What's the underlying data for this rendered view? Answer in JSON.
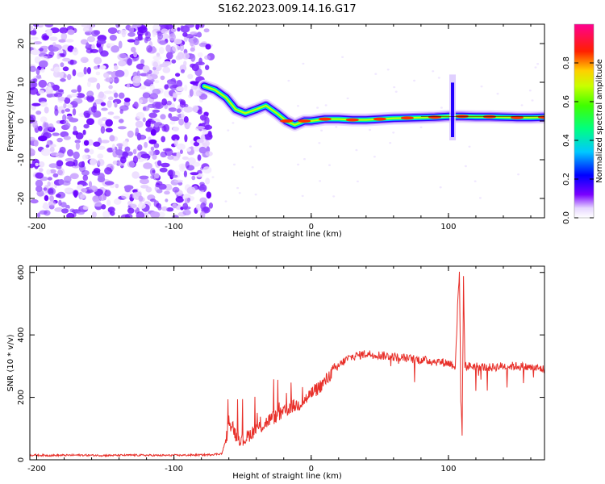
{
  "figure": {
    "title": "S162.2023.009.14.16.G17"
  },
  "chart_data": [
    {
      "type": "heatmap",
      "xlabel": "Height of straight line (km)",
      "ylabel": "Frequency (Hz)",
      "xlim": [
        -205,
        170
      ],
      "ylim": [
        -25,
        25
      ],
      "x_ticks": [
        -200,
        -100,
        0,
        100
      ],
      "x_tick_labels": [
        "-200",
        "-100",
        "0",
        "100"
      ],
      "y_ticks": [
        -20,
        -10,
        0,
        10,
        20
      ],
      "y_tick_labels": [
        "-20",
        "-10",
        "0",
        "10",
        "20"
      ],
      "grid": false,
      "colorbar": {
        "label": "Normalized spectral amplitude",
        "range": [
          0,
          1
        ],
        "ticks": [
          0,
          0.2,
          0.4,
          0.6,
          0.8
        ],
        "tick_labels": [
          "0.0",
          "0.2",
          "0.4",
          "0.6",
          "0.8"
        ]
      },
      "noise_region_x": [
        -205,
        -73
      ],
      "ridge_x": [
        -78,
        -70,
        -62,
        -55,
        -48,
        -40,
        -33,
        -25,
        -18,
        -12,
        -5,
        0,
        10,
        20,
        30,
        40,
        50,
        60,
        70,
        80,
        90,
        100,
        110,
        120,
        130,
        140,
        150,
        160,
        170
      ],
      "ridge_y": [
        9,
        8,
        6,
        3,
        2,
        3,
        4,
        2,
        0,
        -1,
        0,
        0,
        0.5,
        0.5,
        0.3,
        0.3,
        0.5,
        0.7,
        0.8,
        0.9,
        1,
        1.2,
        1.2,
        1.1,
        1.1,
        1,
        0.9,
        0.9,
        1
      ],
      "spike_x": 103,
      "spike_y_range": [
        -5,
        12
      ]
    },
    {
      "type": "line",
      "xlabel": "Height of straight line (km)",
      "ylabel": "SNR (10 * v/v)",
      "xlim": [
        -205,
        170
      ],
      "ylim": [
        0,
        620
      ],
      "x_ticks": [
        -200,
        -100,
        0,
        100
      ],
      "x_tick_labels": [
        "-200",
        "-100",
        "0",
        "100"
      ],
      "y_ticks": [
        0,
        200,
        400,
        600
      ],
      "y_tick_labels": [
        "0",
        "200",
        "400",
        "600"
      ],
      "grid": false,
      "series": [
        {
          "color": "#e8302a",
          "x": [
            -205,
            -190,
            -170,
            -150,
            -130,
            -110,
            -90,
            -75,
            -65,
            -60,
            -58,
            -55,
            -50,
            -45,
            -40,
            -35,
            -30,
            -25,
            -20,
            -15,
            -10,
            -5,
            0,
            5,
            10,
            15,
            20,
            25,
            30,
            40,
            50,
            60,
            70,
            80,
            90,
            100,
            105,
            107,
            108,
            109,
            110,
            111,
            112,
            115,
            120,
            130,
            140,
            150,
            160,
            170
          ],
          "y": [
            15,
            14,
            15,
            14,
            15,
            14,
            15,
            16,
            20,
            100,
            120,
            80,
            60,
            80,
            100,
            110,
            130,
            140,
            150,
            170,
            175,
            190,
            210,
            230,
            250,
            280,
            300,
            320,
            330,
            340,
            335,
            330,
            325,
            320,
            315,
            310,
            300,
            520,
            600,
            200,
            90,
            580,
            300,
            300,
            300,
            295,
            300,
            300,
            295,
            290
          ]
        }
      ]
    }
  ]
}
